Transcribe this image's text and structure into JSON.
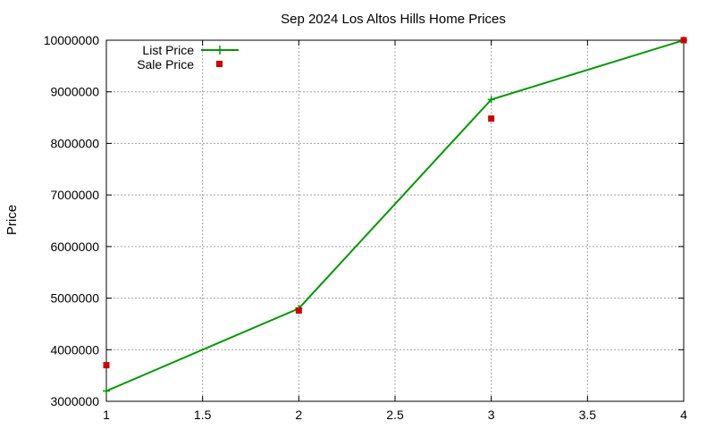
{
  "chart_data": {
    "type": "line",
    "title": "Sep 2024 Los Altos Hills Home Prices",
    "xlabel": "",
    "ylabel": "Price",
    "xlim": [
      1,
      4
    ],
    "ylim": [
      3000000,
      10000000
    ],
    "xticks": [
      "1",
      "1.5",
      "2",
      "2.5",
      "3",
      "3.5",
      "4"
    ],
    "yticks": [
      "3000000",
      "4000000",
      "5000000",
      "6000000",
      "7000000",
      "8000000",
      "9000000",
      "10000000"
    ],
    "grid": true,
    "legend_position": "top-left",
    "series": [
      {
        "name": "List Price",
        "style": "line+marker",
        "color": "#009900",
        "x": [
          1,
          2,
          3,
          4
        ],
        "y": [
          3200000,
          4800000,
          8850000,
          10000000
        ]
      },
      {
        "name": "Sale Price",
        "style": "points",
        "color": "#cc0000",
        "x": [
          1,
          2,
          3,
          4
        ],
        "y": [
          3700000,
          4760000,
          8480000,
          10000000
        ]
      }
    ]
  }
}
